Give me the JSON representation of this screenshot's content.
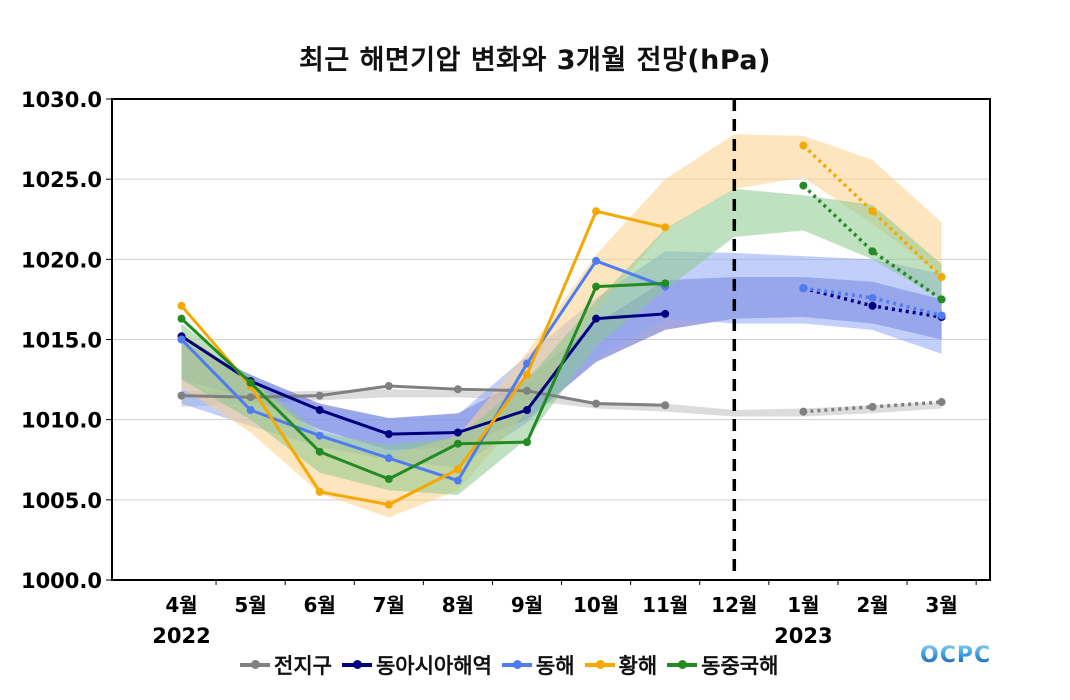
{
  "chart_data": {
    "type": "line",
    "title": "최근 해면기압 변화와 3개월 전망(hPa)",
    "xlabel": "",
    "ylabel": "",
    "ylim": [
      1000.0,
      1030.0
    ],
    "yticks": [
      "1000.0",
      "1005.0",
      "1010.0",
      "1015.0",
      "1020.0",
      "1025.0",
      "1030.0"
    ],
    "grid": "horizontal",
    "categories": [
      "4월",
      "5월",
      "6월",
      "7월",
      "8월",
      "9월",
      "10월",
      "11월",
      "12월",
      "1월",
      "2월",
      "3월"
    ],
    "year_labels": [
      {
        "category": "4월",
        "label": "2022"
      },
      {
        "category": "1월",
        "label": "2023"
      }
    ],
    "divider": {
      "after_category": "12월",
      "style": "dashed"
    },
    "observed_categories": [
      "4월",
      "5월",
      "6월",
      "7월",
      "8월",
      "9월",
      "10월",
      "11월"
    ],
    "forecast_categories": [
      "1월",
      "2월",
      "3월"
    ],
    "legend_position": "bottom",
    "series": [
      {
        "name": "전지구",
        "color": "#808080",
        "band_color": "#bfbfbf",
        "observed": [
          1011.5,
          1011.4,
          1011.5,
          1012.1,
          1011.9,
          1011.8,
          1011.0,
          1010.9
        ],
        "forecast": [
          1010.5,
          1010.8,
          1011.1
        ],
        "band_upper": [
          1011.8,
          1011.7,
          1011.8,
          1011.9,
          1011.8,
          1011.6,
          1011.1,
          1011.0,
          1010.6,
          1010.7,
          1010.9,
          1011.1
        ],
        "band_lower": [
          1010.8,
          1011.0,
          1011.2,
          1011.4,
          1011.4,
          1011.2,
          1010.7,
          1010.5,
          1010.2,
          1010.2,
          1010.4,
          1010.7
        ]
      },
      {
        "name": "동아시아해역",
        "color": "#00007f",
        "band_color": "#5a5fc6",
        "observed": [
          1015.2,
          1012.4,
          1010.6,
          1009.1,
          1009.2,
          1010.6,
          1016.3,
          1016.6
        ],
        "forecast": [
          1018.2,
          1017.1,
          1016.4
        ],
        "band_upper": [
          1014.8,
          1012.8,
          1011.0,
          1010.1,
          1010.4,
          1012.6,
          1016.0,
          1018.7,
          1018.9,
          1018.9,
          1018.6,
          1017.5
        ],
        "band_lower": [
          1012.5,
          1011.3,
          1009.4,
          1008.1,
          1008.3,
          1010.0,
          1013.6,
          1015.6,
          1016.3,
          1016.4,
          1016.0,
          1015.0
        ]
      },
      {
        "name": "동해",
        "color": "#4f7cf0",
        "band_color": "#8ea8f5",
        "observed": [
          1015.0,
          1010.6,
          1009.0,
          1007.6,
          1006.2,
          1013.5,
          1019.9,
          1018.3
        ],
        "forecast": [
          1018.2,
          1017.6,
          1016.5
        ],
        "band_upper": [
          1015.0,
          1012.8,
          1010.8,
          1010.1,
          1010.3,
          1014.0,
          1017.6,
          1020.5,
          1020.4,
          1020.2,
          1020.0,
          1019.1
        ],
        "band_lower": [
          1011.0,
          1009.6,
          1008.3,
          1007.5,
          1007.0,
          1009.8,
          1013.8,
          1016.3,
          1016.0,
          1016.0,
          1015.6,
          1014.1
        ]
      },
      {
        "name": "황해",
        "color": "#f5a800",
        "band_color": "#fbd28a",
        "observed": [
          1017.1,
          1012.1,
          1005.5,
          1004.7,
          1006.9,
          1012.8,
          1023.0,
          1022.0
        ],
        "forecast": [
          1027.1,
          1023.0,
          1018.9
        ],
        "band_upper": [
          1015.5,
          1012.5,
          1008.8,
          1007.8,
          1009.0,
          1014.2,
          1020.3,
          1025.0,
          1027.8,
          1027.7,
          1026.2,
          1022.3
        ],
        "band_lower": [
          1012.0,
          1009.2,
          1005.4,
          1003.9,
          1005.6,
          1010.5,
          1016.8,
          1021.8,
          1024.4,
          1025.1,
          1022.2,
          1019.0
        ]
      },
      {
        "name": "동중국해",
        "color": "#228b22",
        "band_color": "#8cc88c",
        "observed": [
          1016.3,
          1012.3,
          1008.0,
          1006.3,
          1008.5,
          1008.6,
          1018.3,
          1018.5
        ],
        "forecast": [
          1024.6,
          1020.5,
          1017.5
        ],
        "band_upper": [
          1016.0,
          1012.6,
          1009.2,
          1008.4,
          1008.9,
          1012.5,
          1017.4,
          1021.9,
          1024.4,
          1024.0,
          1023.4,
          1019.7
        ],
        "band_lower": [
          1012.5,
          1010.0,
          1006.7,
          1005.6,
          1005.3,
          1008.8,
          1014.6,
          1018.1,
          1021.4,
          1021.8,
          1020.0,
          1017.5
        ]
      }
    ]
  },
  "legend": {
    "items": [
      "전지구",
      "동아시아해역",
      "동해",
      "황해",
      "동중국해"
    ]
  },
  "logo": {
    "text": "OCPC"
  }
}
